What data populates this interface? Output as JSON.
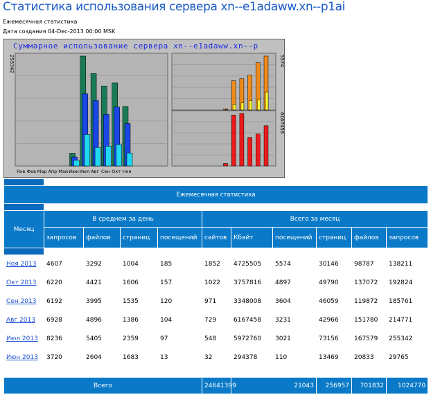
{
  "page": {
    "title": "Статистика использования сервера xn--e1adaww.xn--p1ai",
    "subtitle": "Ежемесячная статистика",
    "created": "Дата создания 04-Dec-2013 00:00 MSK"
  },
  "chart_data": {
    "type": "bar",
    "title": "Суммарное использование сервера xn--e1adaww.xn--p",
    "categories": [
      "Янв",
      "Фев",
      "Мар",
      "Апр",
      "Май",
      "Июн",
      "Июл",
      "Авг",
      "Сен",
      "Окт",
      "Ноя"
    ],
    "left_axis_max_label": "255342",
    "right_top_axis_label": "5574",
    "right_bottom_axis_label": "6167458",
    "series": [
      {
        "name": "запросов",
        "color": "#1a7a56",
        "values": [
          0,
          0,
          0,
          0,
          0,
          29765,
          255342,
          214771,
          185761,
          192824,
          138211
        ]
      },
      {
        "name": "файлов",
        "color": "#1a46e6",
        "values": [
          0,
          0,
          0,
          0,
          0,
          20833,
          167579,
          151780,
          119872,
          137072,
          98787
        ]
      },
      {
        "name": "страниц",
        "color": "#20d8f0",
        "values": [
          0,
          0,
          0,
          0,
          0,
          13469,
          73156,
          42966,
          46059,
          49790,
          30146
        ]
      },
      {
        "name": "сайтов",
        "color": "#ffff30",
        "values": [
          0,
          0,
          0,
          0,
          0,
          32,
          548,
          729,
          971,
          1022,
          1852
        ]
      },
      {
        "name": "посещений",
        "color": "#f08a1a",
        "values": [
          0,
          0,
          0,
          0,
          0,
          110,
          3021,
          3231,
          3604,
          4897,
          5574
        ]
      },
      {
        "name": "Кбайт",
        "color": "#ee1a1a",
        "values": [
          0,
          0,
          0,
          0,
          0,
          294378,
          5972760,
          6167458,
          3348008,
          3757816,
          4725505
        ]
      }
    ],
    "colors": {
      "background": "#c0c0c0",
      "plot": "#b4b4b4",
      "title": "#1a2ae0"
    }
  },
  "table": {
    "title": "Ежемесячная статистика",
    "month_header": "Месяц",
    "avg_header": "В среднем за день",
    "total_header": "Всего за месяц",
    "columns": [
      "запросов",
      "файлов",
      "страниц",
      "посещений",
      "сайтов",
      "Кбайт",
      "посещений",
      "страниц",
      "файлов",
      "запросов"
    ],
    "rows": [
      {
        "month": "Ноя 2013",
        "v": [
          "4607",
          "3292",
          "1004",
          "185",
          "1852",
          "4725505",
          "5574",
          "30146",
          "98787",
          "138211"
        ]
      },
      {
        "month": "Окт 2013",
        "v": [
          "6220",
          "4421",
          "1606",
          "157",
          "1022",
          "3757816",
          "4897",
          "49790",
          "137072",
          "192824"
        ]
      },
      {
        "month": "Сен 2013",
        "v": [
          "6192",
          "3995",
          "1535",
          "120",
          "971",
          "3348008",
          "3604",
          "46059",
          "119872",
          "185761"
        ]
      },
      {
        "month": "Авг 2013",
        "v": [
          "6928",
          "4896",
          "1386",
          "104",
          "729",
          "6167458",
          "3231",
          "42966",
          "151780",
          "214771"
        ]
      },
      {
        "month": "Июл 2013",
        "v": [
          "8236",
          "5405",
          "2359",
          "97",
          "548",
          "5972760",
          "3021",
          "73156",
          "167579",
          "255342"
        ]
      },
      {
        "month": "Июн 2013",
        "v": [
          "3720",
          "2604",
          "1683",
          "13",
          "32",
          "294378",
          "110",
          "13469",
          "20833",
          "29765"
        ]
      }
    ],
    "total_label": "Всего",
    "totals": [
      "24641399",
      "21043",
      "256957",
      "701832",
      "1024770"
    ]
  },
  "colors": {
    "header": "#0a7ac8",
    "link": "#1a4fd0",
    "title": "#1a5ac8"
  }
}
